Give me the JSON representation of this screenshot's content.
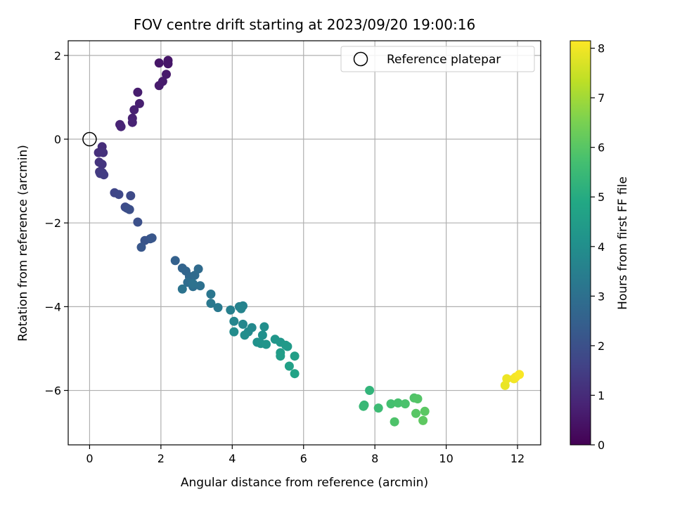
{
  "chart_data": {
    "type": "scatter",
    "title": "FOV centre drift starting at 2023/09/20 19:00:16",
    "xlabel": "Angular distance from reference (arcmin)",
    "ylabel": "Rotation from reference (arcmin)",
    "xlim": [
      -0.6,
      12.65
    ],
    "ylim": [
      -7.3,
      2.35
    ],
    "xticks": [
      0,
      2,
      4,
      6,
      8,
      10,
      12
    ],
    "yticks": [
      2,
      0,
      -2,
      -4,
      -6
    ],
    "grid": true,
    "legend": {
      "position": "top-right",
      "entries": [
        "Reference platepar"
      ]
    },
    "reference_point": {
      "label": "Reference platepar",
      "x": 0,
      "y": 0
    },
    "colorbar": {
      "label": "Hours from first FF file",
      "colormap": "viridis",
      "range": [
        0,
        8.15
      ],
      "ticks": [
        0,
        1,
        2,
        3,
        4,
        5,
        6,
        7,
        8
      ]
    },
    "series": [
      {
        "x": [
          1.95,
          2.2,
          2.2,
          2.15,
          2.05,
          1.95,
          1.35,
          1.4,
          1.25,
          1.2,
          1.2,
          0.85,
          0.88
        ],
        "y": [
          1.82,
          1.88,
          1.8,
          1.55,
          1.38,
          1.28,
          1.12,
          0.85,
          0.7,
          0.5,
          0.4,
          0.35,
          0.3
        ],
        "color_values": [
          0.5,
          0.5,
          0.5,
          0.55,
          0.6,
          0.6,
          0.65,
          0.7,
          0.75,
          0.75,
          0.8,
          0.8,
          0.85
        ]
      },
      {
        "x": [
          0.35,
          0.25,
          0.38,
          0.27,
          0.35,
          0.28,
          0.36,
          0.3,
          0.4
        ],
        "y": [
          -0.18,
          -0.32,
          -0.32,
          -0.55,
          -0.6,
          -0.78,
          -0.8,
          -0.82,
          -0.85
        ],
        "color_values": [
          1.05,
          1.1,
          1.15,
          1.2,
          1.25,
          1.3,
          1.35,
          1.4,
          1.45
        ]
      },
      {
        "x": [
          0.7,
          0.82,
          1.15,
          1.0,
          1.05,
          1.12,
          1.35,
          1.55,
          1.7,
          1.75,
          1.45
        ],
        "y": [
          -1.28,
          -1.32,
          -1.35,
          -1.62,
          -1.65,
          -1.68,
          -1.98,
          -2.42,
          -2.38,
          -2.36,
          -2.58
        ],
        "color_values": [
          1.7,
          1.75,
          1.8,
          1.85,
          1.9,
          1.95,
          2.0,
          2.1,
          2.15,
          2.2,
          2.2
        ]
      },
      {
        "x": [
          2.4,
          2.6,
          2.7,
          2.8,
          2.85,
          2.95,
          3.05,
          2.75,
          2.9,
          3.1,
          2.9,
          2.6,
          3.4,
          3.4,
          3.6
        ],
        "y": [
          -2.9,
          -3.08,
          -3.15,
          -3.28,
          -3.3,
          -3.25,
          -3.1,
          -3.42,
          -3.52,
          -3.5,
          -3.45,
          -3.58,
          -3.7,
          -3.92,
          -4.02
        ],
        "color_values": [
          2.5,
          2.6,
          2.65,
          2.7,
          2.75,
          2.8,
          2.85,
          2.9,
          2.95,
          3.0,
          3.05,
          3.1,
          3.2,
          3.25,
          3.3
        ]
      },
      {
        "x": [
          3.95,
          4.2,
          4.3,
          4.25,
          4.05,
          4.3,
          4.55,
          4.45,
          4.05,
          4.35,
          4.9,
          4.85,
          4.7,
          4.8,
          4.95,
          5.2,
          5.35,
          5.5,
          5.55,
          5.35,
          5.35,
          5.75,
          5.6,
          5.75
        ],
        "y": [
          -4.08,
          -4.0,
          -3.98,
          -4.05,
          -4.35,
          -4.42,
          -4.5,
          -4.6,
          -4.6,
          -4.68,
          -4.48,
          -4.68,
          -4.85,
          -4.88,
          -4.9,
          -4.78,
          -4.85,
          -4.92,
          -4.95,
          -5.1,
          -5.18,
          -5.18,
          -5.42,
          -5.6
        ],
        "color_values": [
          3.5,
          3.55,
          3.6,
          3.65,
          3.7,
          3.75,
          3.8,
          3.85,
          3.9,
          3.95,
          4.0,
          4.05,
          4.1,
          4.15,
          4.2,
          4.25,
          4.3,
          4.35,
          4.4,
          4.45,
          4.5,
          4.55,
          4.6,
          4.7
        ]
      },
      {
        "x": [
          7.85,
          7.7,
          7.68,
          8.1,
          8.45,
          8.65,
          8.85,
          8.55,
          9.1,
          9.2,
          9.15,
          9.4,
          9.35
        ],
        "y": [
          -6.0,
          -6.35,
          -6.38,
          -6.42,
          -6.32,
          -6.3,
          -6.32,
          -6.75,
          -6.18,
          -6.2,
          -6.55,
          -6.5,
          -6.72
        ],
        "color_values": [
          5.3,
          5.4,
          5.45,
          5.55,
          5.7,
          5.75,
          5.8,
          5.85,
          5.9,
          5.95,
          6.0,
          6.05,
          6.1
        ]
      },
      {
        "x": [
          11.65,
          11.7,
          11.9,
          11.95,
          12.05
        ],
        "y": [
          -5.88,
          -5.72,
          -5.72,
          -5.68,
          -5.62
        ],
        "color_values": [
          7.9,
          7.95,
          8.0,
          8.05,
          8.1
        ]
      }
    ]
  }
}
